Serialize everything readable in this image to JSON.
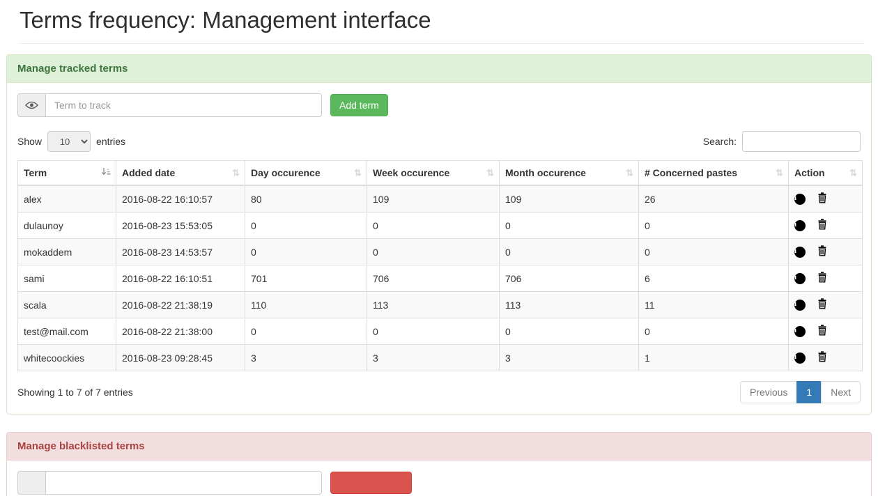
{
  "page": {
    "title": "Terms frequency: Management interface"
  },
  "colors": {
    "success_bg": "#dff0d8",
    "success_text": "#3c763d",
    "success_border": "#d6e9c6",
    "danger_bg": "#f2dede",
    "danger_text": "#a94442",
    "danger_border": "#ebccd1",
    "btn_success": "#5cb85c",
    "btn_danger": "#d9534f",
    "pagination_active": "#337ab7"
  },
  "tracked_panel": {
    "title": "Manage tracked terms",
    "term_input_placeholder": "Term to track",
    "add_button_label": "Add term"
  },
  "table_controls": {
    "show_label": "Show",
    "entries_label": "entries",
    "page_length": "10",
    "search_label": "Search:",
    "search_value": ""
  },
  "table": {
    "columns": [
      "Term",
      "Added date",
      "Day occurence",
      "Week occurence",
      "Month occurence",
      "# Concerned pastes",
      "Action"
    ],
    "rows": [
      {
        "term": "alex",
        "added": "2016-08-22 16:10:57",
        "day": "80",
        "week": "109",
        "month": "109",
        "pastes": "26"
      },
      {
        "term": "dulaunoy",
        "added": "2016-08-23 15:53:05",
        "day": "0",
        "week": "0",
        "month": "0",
        "pastes": "0"
      },
      {
        "term": "mokaddem",
        "added": "2016-08-23 14:53:57",
        "day": "0",
        "week": "0",
        "month": "0",
        "pastes": "0"
      },
      {
        "term": "sami",
        "added": "2016-08-22 16:10:51",
        "day": "701",
        "week": "706",
        "month": "706",
        "pastes": "6"
      },
      {
        "term": "scala",
        "added": "2016-08-22 21:38:19",
        "day": "110",
        "week": "113",
        "month": "113",
        "pastes": "11"
      },
      {
        "term": "test@mail.com",
        "added": "2016-08-22 21:38:00",
        "day": "0",
        "week": "0",
        "month": "0",
        "pastes": "0"
      },
      {
        "term": "whitecoockies",
        "added": "2016-08-23 09:28:45",
        "day": "3",
        "week": "3",
        "month": "3",
        "pastes": "1"
      }
    ],
    "info": "Showing 1 to 7 of 7 entries",
    "pagination": {
      "previous": "Previous",
      "current": "1",
      "next": "Next"
    }
  },
  "blacklist_panel": {
    "title": "Manage blacklisted terms",
    "term_input_placeholder": "",
    "add_button_label": ""
  }
}
